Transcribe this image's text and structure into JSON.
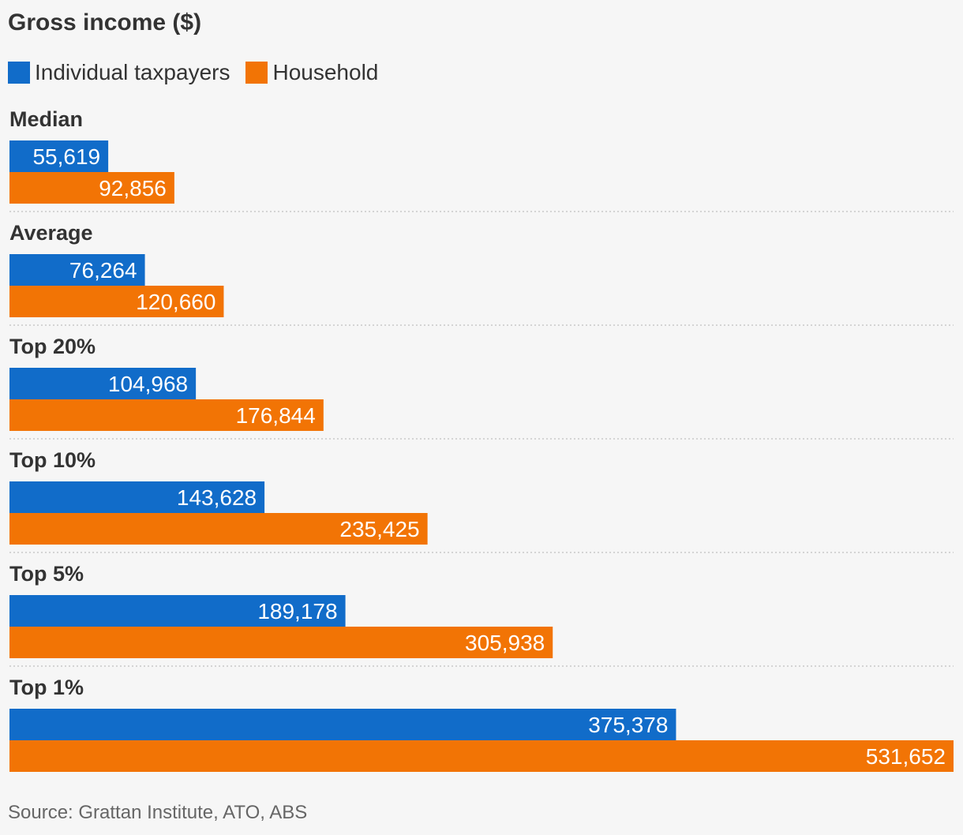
{
  "chart_data": {
    "type": "bar",
    "orientation": "horizontal",
    "title": "Gross income ($)",
    "categories": [
      "Median",
      "Average",
      "Top 20%",
      "Top 10%",
      "Top 5%",
      "Top 1%"
    ],
    "series": [
      {
        "name": "Individual taxpayers",
        "color": "#116cc9",
        "values": [
          55619,
          76264,
          104968,
          143628,
          189178,
          375378
        ],
        "labels": [
          "55,619",
          "76,264",
          "104,968",
          "143,628",
          "189,178",
          "375,378"
        ]
      },
      {
        "name": "Household",
        "color": "#f27405",
        "values": [
          92856,
          120660,
          176844,
          235425,
          305938,
          531652
        ],
        "labels": [
          "92,856",
          "120,660",
          "176,844",
          "235,425",
          "305,938",
          "531,652"
        ]
      }
    ],
    "xlim": [
      0,
      531652
    ],
    "grid": false,
    "legend": "top-left"
  },
  "source": "Source: Grattan Institute, ATO, ABS"
}
